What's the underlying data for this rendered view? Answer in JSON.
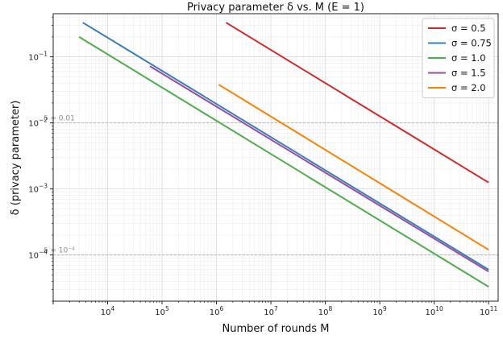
{
  "chart_data": {
    "type": "line",
    "title": "Privacy parameter δ vs. M  (E = 1)",
    "xlabel": "Number of rounds M",
    "ylabel": "δ (privacy parameter)",
    "xscale": "log",
    "yscale": "log",
    "xlim": [
      1000,
      150000000000
    ],
    "ylim": [
      2e-05,
      0.45
    ],
    "xticks": [
      {
        "value": 10000,
        "base": "10",
        "exp": "4"
      },
      {
        "value": 100000,
        "base": "10",
        "exp": "5"
      },
      {
        "value": 1000000,
        "base": "10",
        "exp": "6"
      },
      {
        "value": 10000000,
        "base": "10",
        "exp": "7"
      },
      {
        "value": 100000000,
        "base": "10",
        "exp": "8"
      },
      {
        "value": 1000000000,
        "base": "10",
        "exp": "9"
      },
      {
        "value": 10000000000,
        "base": "10",
        "exp": "10"
      },
      {
        "value": 100000000000,
        "base": "10",
        "exp": "11"
      }
    ],
    "yticks": [
      {
        "value": 0.0001,
        "base": "10",
        "exp": "−4"
      },
      {
        "value": 0.001,
        "base": "10",
        "exp": "−3"
      },
      {
        "value": 0.01,
        "base": "10",
        "exp": "−2"
      },
      {
        "value": 0.1,
        "base": "10",
        "exp": "−1"
      }
    ],
    "grid": true,
    "legend_position": "top-right",
    "reference_lines": [
      {
        "y": 0.01,
        "label": "δ = 0.01",
        "color": "#b5b5b5"
      },
      {
        "y": 0.0001,
        "label": "δ = 10⁻⁴",
        "color": "#b5b5b5"
      }
    ],
    "series": [
      {
        "name": "σ = 0.5",
        "color": "#d62728",
        "x": [
          1500000,
          100000000000
        ],
        "y": [
          0.33,
          0.00125
        ]
      },
      {
        "name": "σ = 0.75",
        "color": "#3a7fba",
        "x": [
          3500,
          100000000000
        ],
        "y": [
          0.33,
          6e-05
        ]
      },
      {
        "name": "σ = 1.0",
        "color": "#4daf4a",
        "x": [
          3000,
          100000000000
        ],
        "y": [
          0.2,
          3.3e-05
        ]
      },
      {
        "name": "σ = 1.5",
        "color": "#984ea3",
        "x": [
          60000,
          100000000000
        ],
        "y": [
          0.072,
          5.6e-05
        ]
      },
      {
        "name": "σ = 2.0",
        "color": "#ff7f00",
        "x": [
          1100000,
          100000000000
        ],
        "y": [
          0.038,
          0.00012
        ]
      }
    ]
  }
}
